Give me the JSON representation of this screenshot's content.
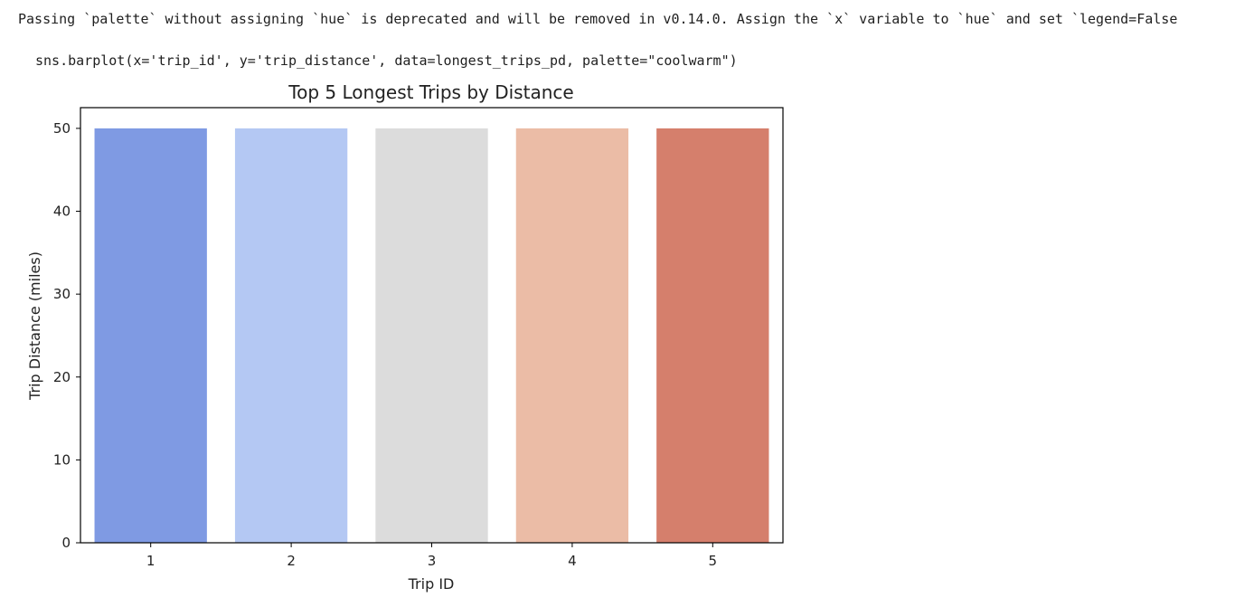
{
  "output": {
    "warning": "Passing `palette` without assigning `hue` is deprecated and will be removed in v0.14.0. Assign the `x` variable to `hue` and set `legend=False",
    "code": "sns.barplot(x='trip_id', y='trip_distance', data=longest_trips_pd, palette=\"coolwarm\")"
  },
  "chart_data": {
    "type": "bar",
    "title": "Top 5 Longest Trips by Distance",
    "xlabel": "Trip ID",
    "ylabel": "Trip Distance (miles)",
    "categories": [
      "1",
      "2",
      "3",
      "4",
      "5"
    ],
    "values": [
      50,
      50,
      50,
      50,
      50
    ],
    "colors": [
      "#7f9ae3",
      "#b4c8f3",
      "#dcdcdc",
      "#ebbca6",
      "#d57f6c"
    ],
    "ylim": [
      0,
      52.5
    ],
    "yticks": [
      0,
      10,
      20,
      30,
      40,
      50
    ],
    "grid": false,
    "legend": "none"
  }
}
